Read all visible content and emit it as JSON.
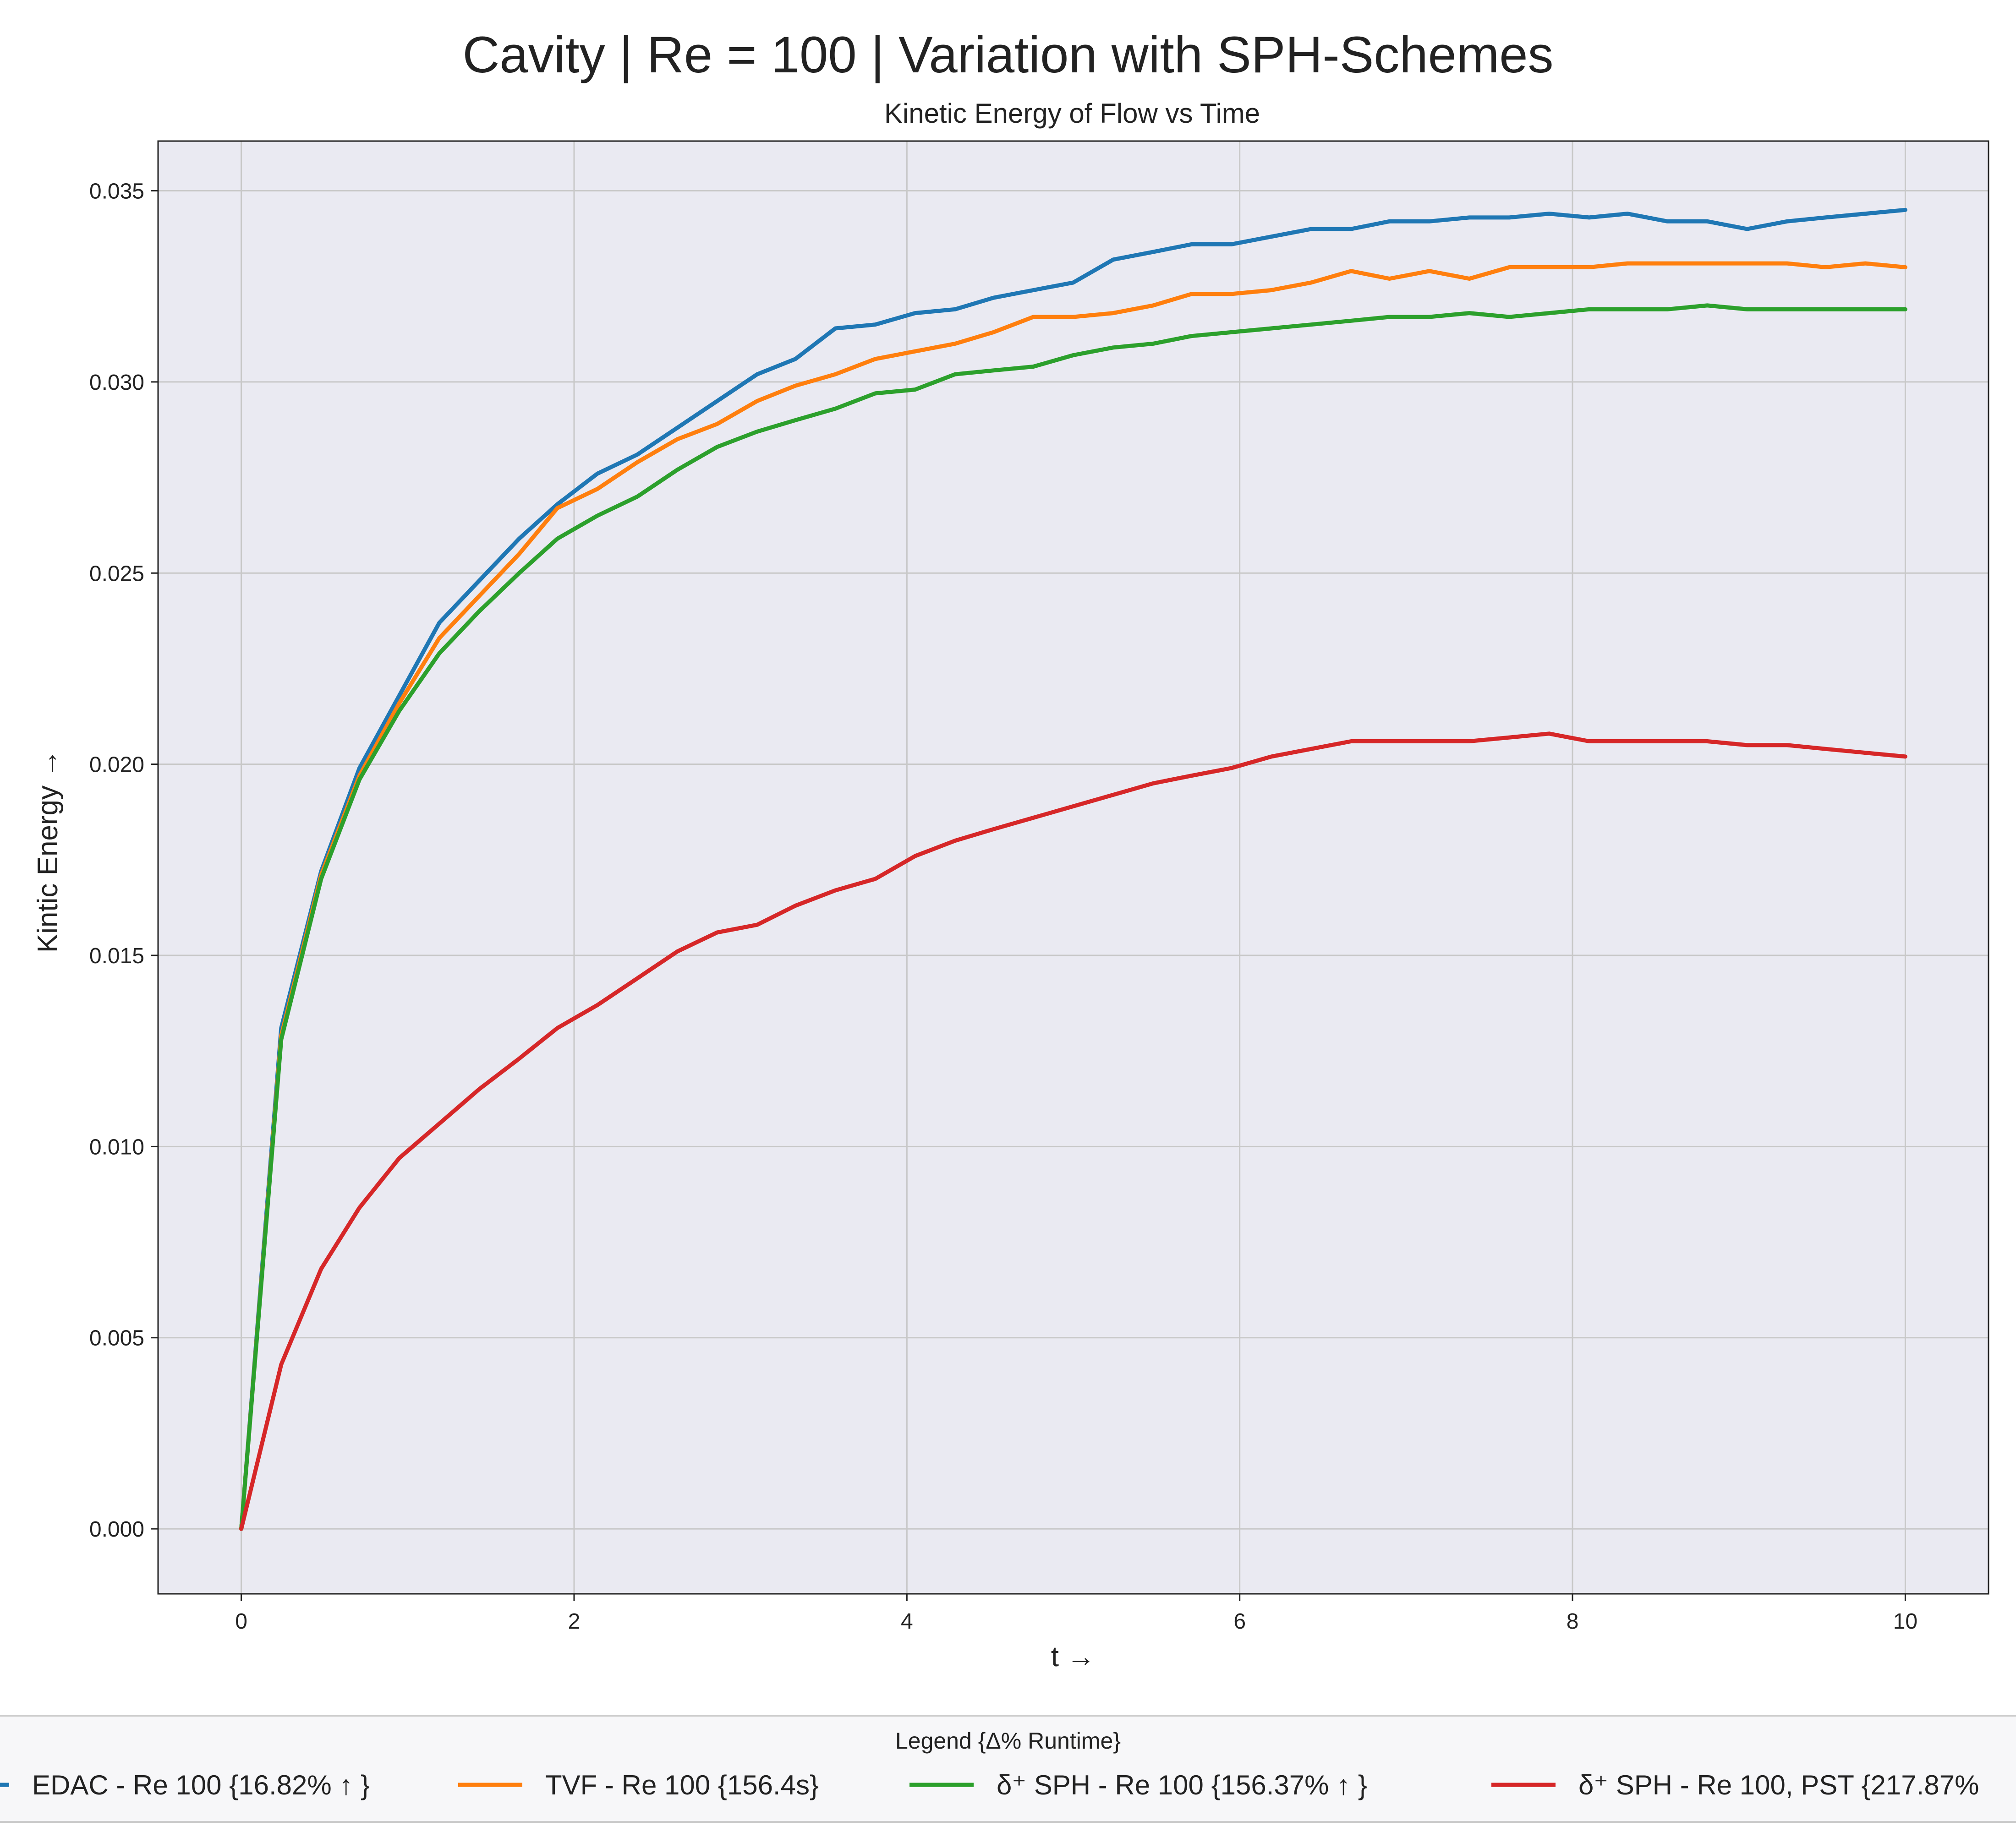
{
  "chart_data": {
    "type": "line",
    "title": "Cavity | Re = 100 | Variation with SPH-Schemes",
    "subtitle": "Kinetic Energy of Flow vs Time",
    "xlabel": "t →",
    "ylabel": "Kintic Energy →",
    "xlim": [
      -0.5,
      10.5
    ],
    "ylim": [
      -0.0017,
      0.0363
    ],
    "xticks": [
      0,
      2,
      4,
      6,
      8,
      10
    ],
    "xtick_labels": [
      "0",
      "2",
      "4",
      "6",
      "8",
      "10"
    ],
    "yticks": [
      0.0,
      0.005,
      0.01,
      0.015,
      0.02,
      0.025,
      0.03,
      0.035
    ],
    "ytick_labels": [
      "0.000",
      "0.005",
      "0.010",
      "0.015",
      "0.020",
      "0.025",
      "0.030",
      "0.035"
    ],
    "grid": true,
    "legend_title": "Legend {Δ% Runtime}",
    "legend_placement": "bottom-center",
    "x": [
      0,
      0.24,
      0.48,
      0.71,
      0.95,
      1.19,
      1.43,
      1.67,
      1.9,
      2.14,
      2.38,
      2.62,
      2.86,
      3.1,
      3.33,
      3.57,
      3.81,
      4.05,
      4.29,
      4.52,
      4.76,
      5.0,
      5.24,
      5.48,
      5.71,
      5.95,
      6.19,
      6.43,
      6.67,
      6.9,
      7.14,
      7.38,
      7.62,
      7.86,
      8.1,
      8.33,
      8.57,
      8.81,
      9.05,
      9.29,
      9.52,
      9.76,
      10.0
    ],
    "series": [
      {
        "name": "EDAC - Re 100 {16.82% ↑ }",
        "color": "#1f77b4",
        "values": [
          0.0,
          0.0131,
          0.0172,
          0.0199,
          0.0218,
          0.0237,
          0.0248,
          0.0259,
          0.0268,
          0.0276,
          0.0281,
          0.0288,
          0.0295,
          0.0302,
          0.0306,
          0.0314,
          0.0315,
          0.0318,
          0.0319,
          0.0322,
          0.0324,
          0.0326,
          0.0332,
          0.0334,
          0.0336,
          0.0336,
          0.0338,
          0.034,
          0.034,
          0.0342,
          0.0342,
          0.0343,
          0.0343,
          0.0344,
          0.0343,
          0.0344,
          0.0342,
          0.0342,
          0.034,
          0.0342,
          0.0343,
          0.0344,
          0.0345
        ]
      },
      {
        "name": "TVF - Re 100 {156.4s}",
        "color": "#ff7f0e",
        "values": [
          0.0,
          0.0129,
          0.0171,
          0.0197,
          0.0216,
          0.0233,
          0.0244,
          0.0255,
          0.0267,
          0.0272,
          0.0279,
          0.0285,
          0.0289,
          0.0295,
          0.0299,
          0.0302,
          0.0306,
          0.0308,
          0.031,
          0.0313,
          0.0317,
          0.0317,
          0.0318,
          0.032,
          0.0323,
          0.0323,
          0.0324,
          0.0326,
          0.0329,
          0.0327,
          0.0329,
          0.0327,
          0.033,
          0.033,
          0.033,
          0.0331,
          0.0331,
          0.0331,
          0.0331,
          0.0331,
          0.033,
          0.0331,
          0.033
        ]
      },
      {
        "name": "δ⁺ SPH - Re 100 {156.37% ↑ }",
        "color": "#2ca02c",
        "values": [
          0.0,
          0.0128,
          0.017,
          0.0196,
          0.0214,
          0.0229,
          0.024,
          0.025,
          0.0259,
          0.0265,
          0.027,
          0.0277,
          0.0283,
          0.0287,
          0.029,
          0.0293,
          0.0297,
          0.0298,
          0.0302,
          0.0303,
          0.0304,
          0.0307,
          0.0309,
          0.031,
          0.0312,
          0.0313,
          0.0314,
          0.0315,
          0.0316,
          0.0317,
          0.0317,
          0.0318,
          0.0317,
          0.0318,
          0.0319,
          0.0319,
          0.0319,
          0.032,
          0.0319,
          0.0319,
          0.0319,
          0.0319,
          0.0319
        ]
      },
      {
        "name": "δ⁺ SPH - Re 100, PST {217.87%",
        "color": "#d62728",
        "values": [
          0.0,
          0.0043,
          0.0068,
          0.0084,
          0.0097,
          0.0106,
          0.0115,
          0.0123,
          0.0131,
          0.0137,
          0.0144,
          0.0151,
          0.0156,
          0.0158,
          0.0163,
          0.0167,
          0.017,
          0.0176,
          0.018,
          0.0183,
          0.0186,
          0.0189,
          0.0192,
          0.0195,
          0.0197,
          0.0199,
          0.0202,
          0.0204,
          0.0206,
          0.0206,
          0.0206,
          0.0206,
          0.0207,
          0.0208,
          0.0206,
          0.0206,
          0.0206,
          0.0206,
          0.0205,
          0.0205,
          0.0204,
          0.0203,
          0.0202
        ]
      }
    ]
  }
}
